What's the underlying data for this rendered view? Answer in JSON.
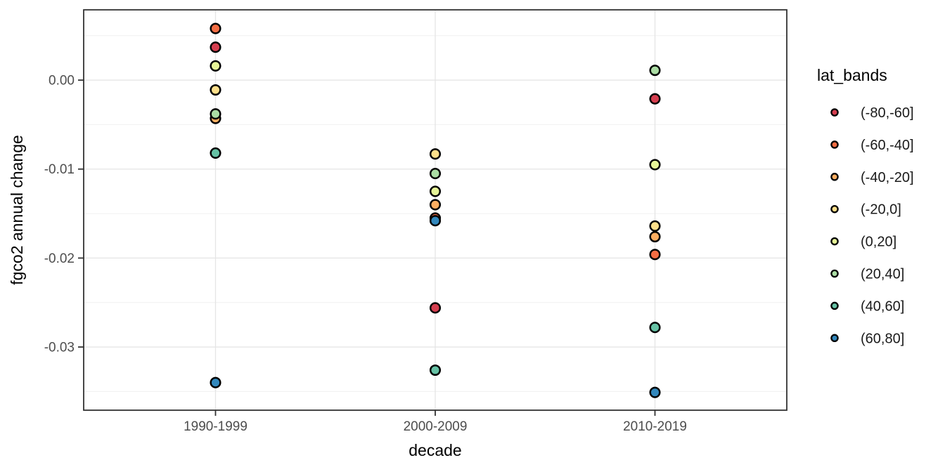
{
  "figure": {
    "background": "#FFFFFF",
    "panel_background": "#FFFFFF",
    "panel_border_color": "#333333",
    "grid_major_color": "#E5E5E5",
    "grid_minor_color": "#F0F0F0",
    "tick_color": "#333333",
    "tick_label_color": "#4D4D4D",
    "point_stroke_color": "#000000"
  },
  "chart_data": {
    "type": "scatter",
    "title": "",
    "xlabel": "decade",
    "ylabel": "fgco2 annual change",
    "categories": [
      "1990-1999",
      "2000-2009",
      "2010-2019"
    ],
    "y_axis": {
      "ticks": [
        0,
        -0.01,
        -0.02,
        -0.03
      ],
      "tick_labels": [
        "0.00",
        "-0.01",
        "-0.02",
        "-0.03"
      ],
      "minor_ticks": [
        0.005,
        -0.005,
        -0.015,
        -0.025,
        -0.035
      ],
      "lim": [
        -0.0371,
        0.0079
      ],
      "grid": true
    },
    "legend": {
      "title": "lat_bands",
      "position": "right"
    },
    "series": [
      {
        "name": "(-80,-60]",
        "color": "#D53E4F",
        "values": [
          0.0037,
          -0.0256,
          -0.0021
        ]
      },
      {
        "name": "(-60,-40]",
        "color": "#F46D43",
        "values": [
          0.0058,
          -0.0155,
          -0.0196
        ]
      },
      {
        "name": "(-40,-20]",
        "color": "#FDAE61",
        "values": [
          -0.0043,
          -0.014,
          -0.0176
        ]
      },
      {
        "name": "(-20,0]",
        "color": "#FEE08B",
        "values": [
          -0.0011,
          -0.0083,
          -0.0164
        ]
      },
      {
        "name": "(0,20]",
        "color": "#E6F598",
        "values": [
          0.0016,
          -0.0125,
          -0.0095
        ]
      },
      {
        "name": "(20,40]",
        "color": "#ABDDA4",
        "values": [
          -0.0038,
          -0.0105,
          0.0011
        ]
      },
      {
        "name": "(40,60]",
        "color": "#66C2A5",
        "values": [
          -0.0082,
          -0.0326,
          -0.0278
        ]
      },
      {
        "name": "(60,80]",
        "color": "#3288BD",
        "values": [
          -0.034,
          -0.0158,
          -0.0351
        ]
      }
    ]
  }
}
